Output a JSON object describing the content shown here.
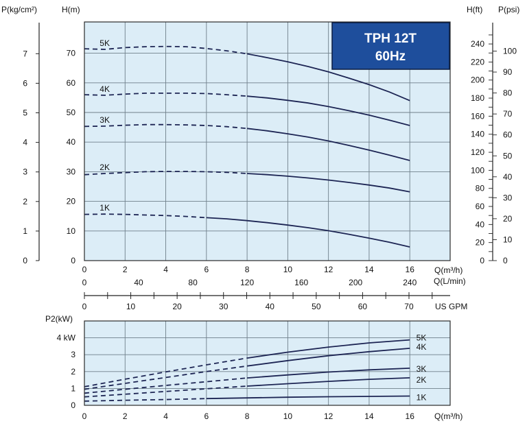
{
  "colors": {
    "panel_bg": "#dcedf7",
    "grid": "#6f7f8a",
    "curve": "#1c2453",
    "title_bg": "#1e4e9c",
    "title_border": "#0a1c40"
  },
  "chart_data": [
    {
      "type": "line",
      "title_lines": [
        "TPH 12T",
        "60Hz"
      ],
      "x_label": "Q(m³/h)",
      "y_label_left": "H(m)",
      "x_ticks": [
        "0",
        "2",
        "4",
        "6",
        "8",
        "10",
        "12",
        "14",
        "16"
      ],
      "y_ticks": [
        "0",
        "10",
        "20",
        "30",
        "40",
        "50",
        "60",
        "70"
      ],
      "xlim": [
        0,
        16
      ],
      "ylim": [
        0,
        80
      ],
      "grid": true,
      "series": [
        {
          "name": "5K",
          "x": [
            0,
            1,
            2,
            3,
            4,
            5,
            6,
            7,
            8,
            9,
            10,
            11,
            12,
            13,
            14,
            15,
            16
          ],
          "y": [
            71.5,
            71.3,
            71.9,
            72.2,
            72.3,
            72.2,
            71.6,
            70.8,
            69.8,
            68.5,
            67.1,
            65.5,
            63.7,
            61.6,
            59.4,
            56.9,
            54.0
          ],
          "dashed_until": 8
        },
        {
          "name": "4K",
          "x": [
            0,
            1,
            2,
            3,
            4,
            5,
            6,
            7,
            8,
            9,
            10,
            11,
            12,
            13,
            14,
            15,
            16
          ],
          "y": [
            56.0,
            55.8,
            56.2,
            56.5,
            56.5,
            56.5,
            56.4,
            56.0,
            55.5,
            54.9,
            54.1,
            53.2,
            52.0,
            50.6,
            49.1,
            47.4,
            45.6
          ],
          "dashed_until": 8
        },
        {
          "name": "3K",
          "x": [
            0,
            1,
            2,
            3,
            4,
            5,
            6,
            7,
            8,
            9,
            10,
            11,
            12,
            13,
            14,
            15,
            16
          ],
          "y": [
            45.3,
            45.4,
            45.7,
            45.9,
            45.9,
            45.8,
            45.6,
            45.2,
            44.6,
            43.8,
            42.8,
            41.7,
            40.4,
            38.9,
            37.3,
            35.6,
            33.8
          ],
          "dashed_until": 8
        },
        {
          "name": "2K",
          "x": [
            0,
            1,
            2,
            3,
            4,
            5,
            6,
            7,
            8,
            9,
            10,
            11,
            12,
            13,
            14,
            15,
            16
          ],
          "y": [
            29.0,
            29.4,
            29.7,
            30.0,
            30.1,
            30.1,
            30.0,
            29.8,
            29.4,
            29.0,
            28.5,
            27.9,
            27.2,
            26.4,
            25.5,
            24.5,
            23.2
          ],
          "dashed_until": 8
        },
        {
          "name": "1K",
          "x": [
            0,
            1,
            2,
            3,
            4,
            5,
            6,
            7,
            8,
            9,
            10,
            11,
            12,
            13,
            14,
            15,
            16
          ],
          "y": [
            15.6,
            15.7,
            15.6,
            15.4,
            15.2,
            14.9,
            14.5,
            14.1,
            13.5,
            12.8,
            12.0,
            11.1,
            10.1,
            8.9,
            7.6,
            6.2,
            4.6
          ],
          "dashed_until": 6
        }
      ],
      "secondary_axes": {
        "left_outer": {
          "label": "P(kg/cm²)",
          "ticks": [
            "0",
            "1",
            "2",
            "3",
            "4",
            "5",
            "6",
            "7"
          ]
        },
        "right_ft": {
          "label": "H(ft)",
          "ticks": [
            "0",
            "20",
            "40",
            "60",
            "80",
            "100",
            "120",
            "140",
            "160",
            "180",
            "200",
            "220",
            "240"
          ]
        },
        "right_psi": {
          "label": "P(psi)",
          "ticks": [
            "0",
            "10",
            "20",
            "30",
            "40",
            "50",
            "60",
            "70",
            "80",
            "90",
            "100"
          ]
        },
        "lpm": {
          "label": "Q(L/min)",
          "ticks": [
            "0",
            "40",
            "80",
            "120",
            "160",
            "200",
            "240"
          ]
        },
        "gpm": {
          "label": "US GPM",
          "ticks": [
            "0",
            "10",
            "20",
            "30",
            "40",
            "50",
            "60",
            "70"
          ]
        }
      }
    },
    {
      "type": "line",
      "x_label": "Q(m³/h)",
      "y_label": "P2(kW)",
      "x_ticks": [
        "0",
        "2",
        "4",
        "6",
        "8",
        "10",
        "12",
        "14",
        "16"
      ],
      "y_ticks": [
        "0",
        "1",
        "2",
        "3",
        "4 kW"
      ],
      "xlim": [
        0,
        16
      ],
      "ylim": [
        0,
        4.8
      ],
      "grid": true,
      "series": [
        {
          "name": "5K",
          "x": [
            0,
            2,
            4,
            6,
            8,
            10,
            12,
            14,
            16
          ],
          "y": [
            1.1,
            1.55,
            1.98,
            2.4,
            2.8,
            3.15,
            3.45,
            3.7,
            3.88
          ],
          "dashed_until": 8
        },
        {
          "name": "4K",
          "x": [
            0,
            2,
            4,
            6,
            8,
            10,
            12,
            14,
            16
          ],
          "y": [
            0.95,
            1.3,
            1.65,
            2.0,
            2.33,
            2.65,
            2.94,
            3.18,
            3.38
          ],
          "dashed_until": 8
        },
        {
          "name": "3K",
          "x": [
            0,
            2,
            4,
            6,
            8,
            10,
            12,
            14,
            16
          ],
          "y": [
            0.72,
            0.95,
            1.18,
            1.4,
            1.62,
            1.8,
            1.97,
            2.1,
            2.2
          ],
          "dashed_until": 8
        },
        {
          "name": "2K",
          "x": [
            0,
            2,
            4,
            6,
            8,
            10,
            12,
            14,
            16
          ],
          "y": [
            0.5,
            0.66,
            0.82,
            0.98,
            1.14,
            1.28,
            1.42,
            1.54,
            1.63
          ],
          "dashed_until": 8
        },
        {
          "name": "1K",
          "x": [
            0,
            2,
            4,
            6,
            8,
            10,
            12,
            14,
            16
          ],
          "y": [
            0.25,
            0.3,
            0.34,
            0.4,
            0.44,
            0.48,
            0.51,
            0.53,
            0.55
          ],
          "dashed_until": 6
        }
      ]
    }
  ]
}
